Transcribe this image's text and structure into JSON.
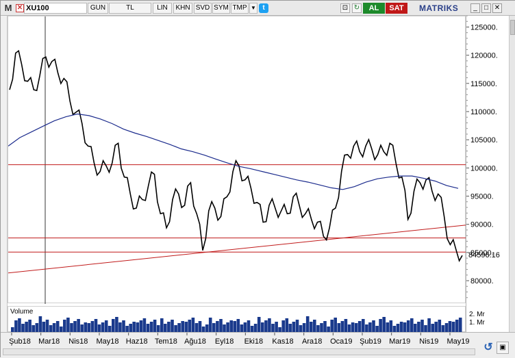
{
  "toolbar": {
    "logo": "M",
    "symbol": "XU100",
    "buttons": [
      "GUN",
      "TL",
      "LIN",
      "KHN",
      "SVD",
      "SYM",
      "TMP"
    ],
    "dropdown_icon": "chevron-down-icon",
    "al_label": "AL",
    "sat_label": "SAT",
    "brand": "MATRIKS"
  },
  "colors": {
    "price": "#000000",
    "moving_average": "#1a2a8c",
    "support_resistance": "#c01818",
    "buy": "#1d8a2b",
    "sell": "#c01818",
    "volume": "#1a3a8c"
  },
  "chart_data": {
    "type": "line",
    "ylim": [
      76000,
      127000
    ],
    "yticks": [
      80000,
      85000,
      90000,
      95000,
      100000,
      105000,
      110000,
      115000,
      120000,
      125000
    ],
    "ytick_labels": [
      "80000.",
      "85000.",
      "90000.",
      "95000.",
      "100000.",
      "105000.",
      "110000.",
      "115000.",
      "120000.",
      "125000."
    ],
    "last_value_label": "84596.16",
    "last_value": 84596.16,
    "x_labels": [
      "Şub18",
      "Mar18",
      "Nis18",
      "May18",
      "Haz18",
      "Tem18",
      "Ağu18",
      "Eyl18",
      "Eki18",
      "Kas18",
      "Ara18",
      "Oca19",
      "Şub19",
      "Mar19",
      "Nis19",
      "May19"
    ],
    "series": [
      {
        "values": [
          114000,
          120500,
          118500,
          115500,
          114000,
          116500,
          119800,
          119000,
          117000,
          116000,
          112000,
          110000,
          108000,
          104000,
          101000,
          99500,
          100500,
          101000,
          104500,
          98500,
          95500,
          93000,
          94500,
          97000,
          99000,
          92000,
          89500,
          94500,
          95500,
          93500,
          97500,
          92000,
          85500,
          92500,
          93000,
          91500,
          95000,
          99500,
          100500,
          98000,
          96500,
          94000,
          90500,
          93500,
          93000,
          92500,
          92000,
          95000,
          93500,
          92000,
          91000,
          90500,
          88000,
          89500,
          93000,
          99500,
          102500,
          104000,
          103000,
          104000,
          103500,
          102500,
          103000,
          104500,
          101000,
          98500,
          91000,
          96000,
          97500,
          98000,
          96000,
          95500,
          91500,
          86500,
          85500,
          84600
        ]
      },
      {
        "values": [
          104000,
          105500,
          106500,
          107500,
          108500,
          109200,
          109700,
          109400,
          108800,
          108000,
          107000,
          106300,
          105700,
          105000,
          104300,
          103500,
          103000,
          102400,
          101700,
          101000,
          100400,
          100000,
          99500,
          99000,
          98500,
          98000,
          97600,
          97100,
          96600,
          96300,
          96800,
          97600,
          98200,
          98500,
          98700,
          98700,
          98300,
          97800,
          97000,
          96500
        ]
      }
    ],
    "horizontal_levels": [
      100700,
      87700,
      85200
    ],
    "trendline": {
      "start": 81500,
      "end": 90000
    }
  },
  "volume": {
    "label": "Volume",
    "ticks": [
      "2. Mr",
      "1. Mr"
    ]
  }
}
